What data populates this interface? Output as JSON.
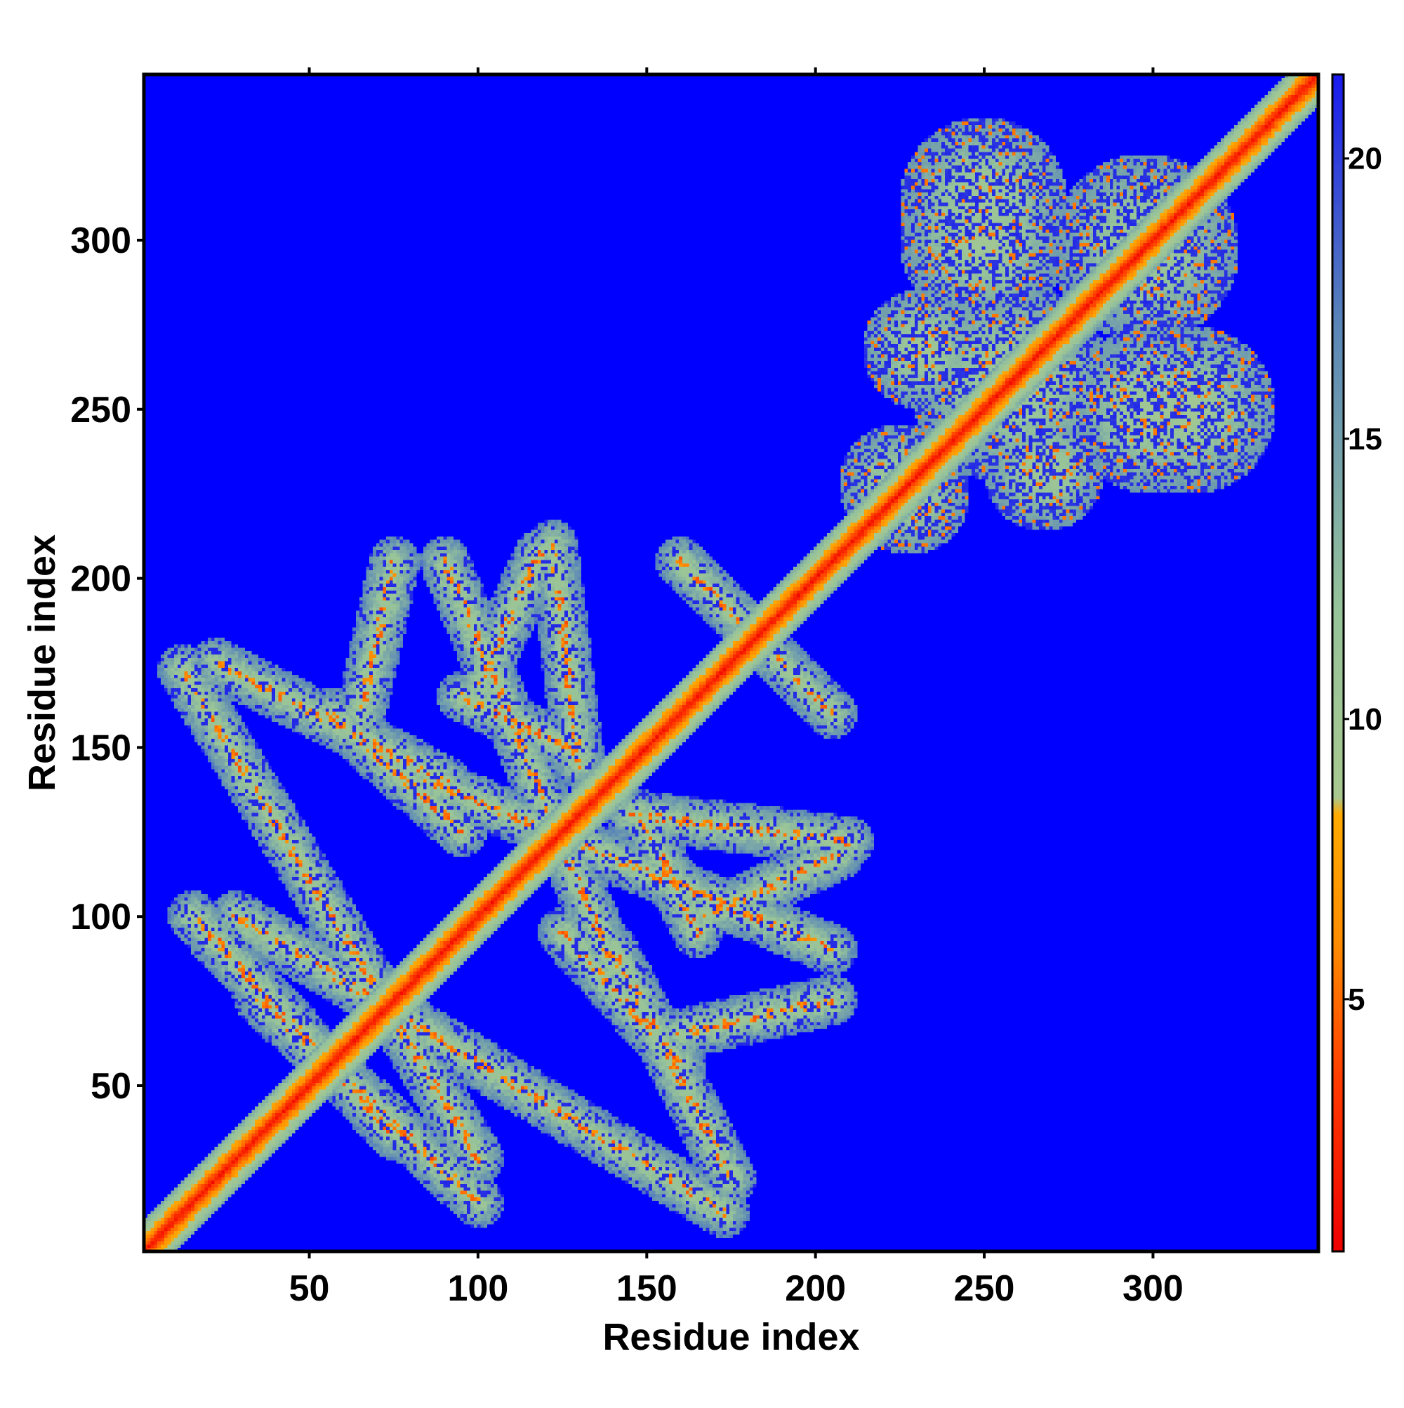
{
  "chart_data": {
    "type": "heatmap",
    "title": "",
    "xlabel": "Residue index",
    "ylabel": "Residue index",
    "x_range": [
      1,
      349
    ],
    "y_range": [
      1,
      349
    ],
    "x_ticks": [
      50,
      100,
      150,
      200,
      250,
      300
    ],
    "y_ticks": [
      50,
      100,
      150,
      200,
      250,
      300
    ],
    "colorbar": {
      "range": [
        0.5,
        21.5
      ],
      "ticks": [
        5,
        10,
        15,
        20
      ],
      "stops": [
        {
          "value": 0.5,
          "color": "#ee0000"
        },
        {
          "value": 3.5,
          "color": "#ff3a00"
        },
        {
          "value": 6.0,
          "color": "#ff8c00"
        },
        {
          "value": 8.3,
          "color": "#ffaa00"
        },
        {
          "value": 8.6,
          "color": "#a8c890"
        },
        {
          "value": 12.0,
          "color": "#96c39a"
        },
        {
          "value": 17.0,
          "color": "#5a86b8"
        },
        {
          "value": 21.5,
          "color": "#1a1aee"
        }
      ]
    },
    "background_value": 21.5,
    "background_color": "#0000ff",
    "structure": {
      "diagonal": {
        "from": 1,
        "to": 349
      },
      "parallel_bands": [
        {
          "from": [
            12,
            173
          ],
          "to": [
            100,
            28
          ]
        },
        {
          "from": [
            15,
            100
          ],
          "to": [
            75,
            35
          ]
        },
        {
          "from": [
            56,
            160
          ],
          "to": [
            95,
            125
          ]
        },
        {
          "from": [
            90,
            205
          ],
          "to": [
            140,
            85
          ]
        },
        {
          "from": [
            95,
            165
          ],
          "to": [
            130,
            148
          ]
        },
        {
          "from": [
            140,
            90
          ],
          "to": [
            175,
            22
          ]
        },
        {
          "from": [
            145,
            130
          ],
          "to": [
            210,
            122
          ]
        },
        {
          "from": [
            165,
            200
          ],
          "to": [
            205,
            160
          ]
        },
        {
          "from": [
            160,
            65
          ],
          "to": [
            205,
            75
          ]
        },
        {
          "from": [
            168,
            100
          ],
          "to": [
            207,
            118
          ]
        }
      ],
      "clusters": [
        {
          "center": [
            258,
            258
          ],
          "size": 30
        },
        {
          "center": [
            298,
            298
          ],
          "size": 28
        },
        {
          "center": [
            250,
            312
          ],
          "size": 25
        },
        {
          "center": [
            300,
            250
          ],
          "size": 25
        },
        {
          "center": [
            225,
            228
          ],
          "size": 18
        },
        {
          "center": [
            268,
            232
          ],
          "size": 18
        }
      ]
    }
  }
}
